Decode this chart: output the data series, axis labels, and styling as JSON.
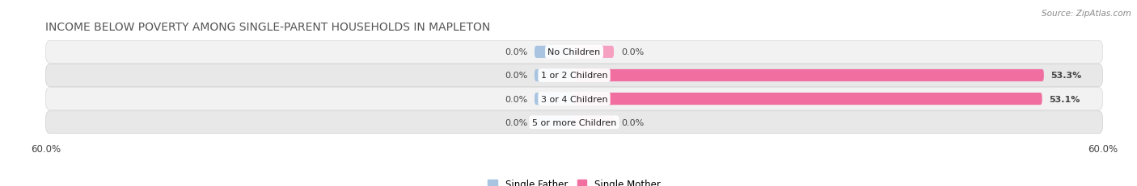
{
  "title": "INCOME BELOW POVERTY AMONG SINGLE-PARENT HOUSEHOLDS IN MAPLETON",
  "source": "Source: ZipAtlas.com",
  "categories": [
    "No Children",
    "1 or 2 Children",
    "3 or 4 Children",
    "5 or more Children"
  ],
  "single_father": [
    0.0,
    0.0,
    0.0,
    0.0
  ],
  "single_mother": [
    0.0,
    53.3,
    53.1,
    0.0
  ],
  "father_color": "#a8c4e0",
  "mother_color": "#f06fa0",
  "mother_color_light": "#f5a0c0",
  "axis_limit": 60.0,
  "bar_height": 0.52,
  "title_fontsize": 10,
  "label_fontsize": 8,
  "tick_fontsize": 8.5,
  "source_fontsize": 7.5,
  "legend_fontsize": 8.5,
  "row_bg_light": "#f2f2f2",
  "row_bg_dark": "#e8e8e8",
  "father_stub": 4.5,
  "mother_stub": 4.5
}
